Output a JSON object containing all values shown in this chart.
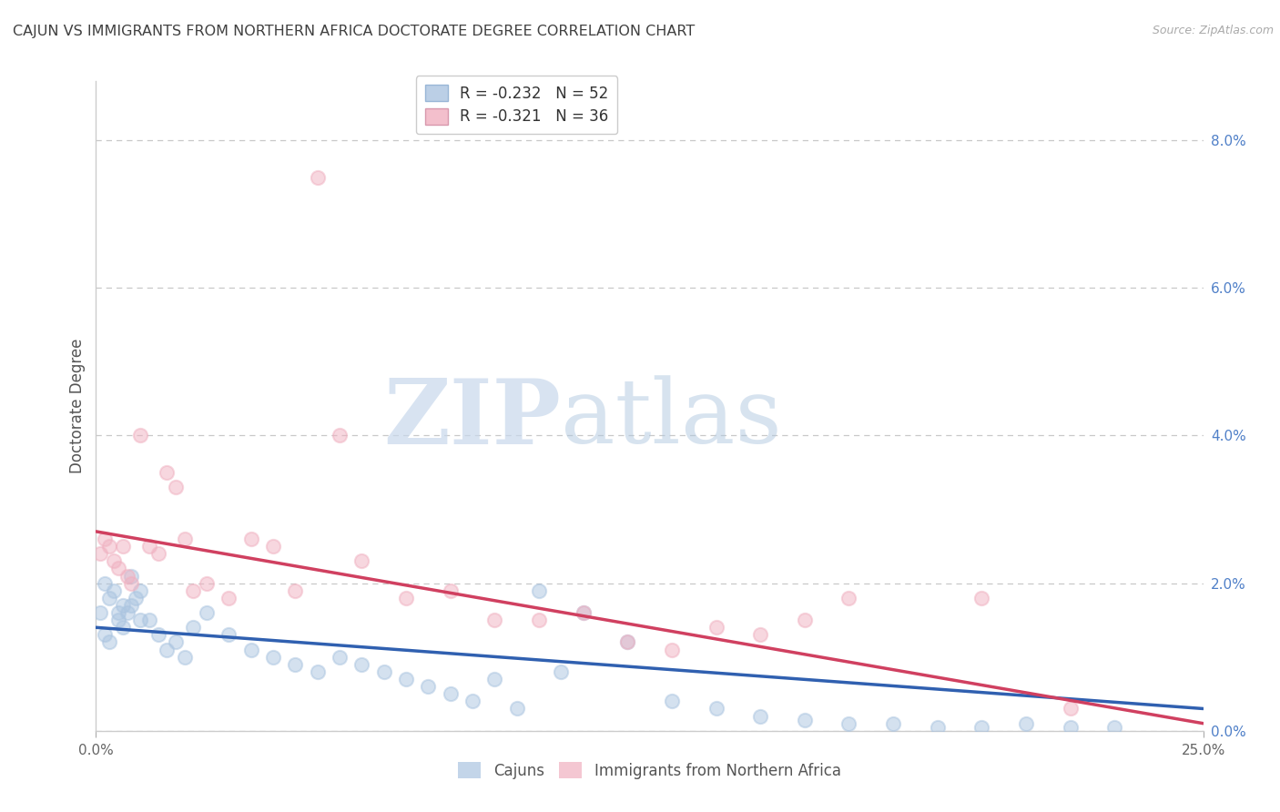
{
  "title": "CAJUN VS IMMIGRANTS FROM NORTHERN AFRICA DOCTORATE DEGREE CORRELATION CHART",
  "source": "Source: ZipAtlas.com",
  "ylabel_left": "Doctorate Degree",
  "xlim": [
    0.0,
    25.0
  ],
  "ylim": [
    0.0,
    8.8
  ],
  "watermark_zip": "ZIP",
  "watermark_atlas": "atlas",
  "legend_stat_labels": [
    "R = -0.232   N = 52",
    "R = -0.321   N = 36"
  ],
  "legend_bottom_labels": [
    "Cajuns",
    "Immigrants from Northern Africa"
  ],
  "cajun_color": "#aac4e0",
  "immigrant_color": "#f0b0c0",
  "cajun_line_color": "#3060b0",
  "immigrant_line_color": "#d04060",
  "background_color": "#ffffff",
  "grid_color": "#c8c8c8",
  "title_color": "#404040",
  "right_tick_color": "#5080c8",
  "yticks_right": [
    0.0,
    2.0,
    4.0,
    6.0,
    8.0
  ],
  "xtick_positions": [
    0,
    25
  ],
  "xtick_labels": [
    "0.0%",
    "25.0%"
  ],
  "cajun_x": [
    0.1,
    0.2,
    0.3,
    0.4,
    0.5,
    0.6,
    0.7,
    0.8,
    0.9,
    1.0,
    0.2,
    0.3,
    0.5,
    0.6,
    0.8,
    1.0,
    1.2,
    1.4,
    1.6,
    1.8,
    2.0,
    2.2,
    2.5,
    3.0,
    3.5,
    4.0,
    4.5,
    5.0,
    5.5,
    6.0,
    6.5,
    7.0,
    7.5,
    8.0,
    8.5,
    9.5,
    10.0,
    11.0,
    12.0,
    13.0,
    14.0,
    15.0,
    16.0,
    17.0,
    18.0,
    19.0,
    20.0,
    21.0,
    22.0,
    23.0,
    10.5,
    9.0
  ],
  "cajun_y": [
    1.6,
    2.0,
    1.8,
    1.9,
    1.5,
    1.7,
    1.6,
    2.1,
    1.8,
    1.5,
    1.3,
    1.2,
    1.6,
    1.4,
    1.7,
    1.9,
    1.5,
    1.3,
    1.1,
    1.2,
    1.0,
    1.4,
    1.6,
    1.3,
    1.1,
    1.0,
    0.9,
    0.8,
    1.0,
    0.9,
    0.8,
    0.7,
    0.6,
    0.5,
    0.4,
    0.3,
    1.9,
    1.6,
    1.2,
    0.4,
    0.3,
    0.2,
    0.15,
    0.1,
    0.1,
    0.05,
    0.05,
    0.1,
    0.05,
    0.05,
    0.8,
    0.7
  ],
  "immigrant_x": [
    0.1,
    0.2,
    0.3,
    0.4,
    0.5,
    0.6,
    0.7,
    0.8,
    1.0,
    1.2,
    1.4,
    1.6,
    1.8,
    2.0,
    2.2,
    2.5,
    3.0,
    3.5,
    4.0,
    4.5,
    5.0,
    5.5,
    6.0,
    7.0,
    8.0,
    9.0,
    10.0,
    11.0,
    12.0,
    13.0,
    14.0,
    15.0,
    16.0,
    17.0,
    20.0,
    22.0
  ],
  "immigrant_y": [
    2.4,
    2.6,
    2.5,
    2.3,
    2.2,
    2.5,
    2.1,
    2.0,
    4.0,
    2.5,
    2.4,
    3.5,
    3.3,
    2.6,
    1.9,
    2.0,
    1.8,
    2.6,
    2.5,
    1.9,
    7.5,
    4.0,
    2.3,
    1.8,
    1.9,
    1.5,
    1.5,
    1.6,
    1.2,
    1.1,
    1.4,
    1.3,
    1.5,
    1.8,
    1.8,
    0.3
  ],
  "cajun_line_x": [
    0,
    25
  ],
  "cajun_line_y": [
    1.4,
    0.3
  ],
  "immigrant_line_x": [
    0,
    25
  ],
  "immigrant_line_y": [
    2.7,
    0.1
  ]
}
